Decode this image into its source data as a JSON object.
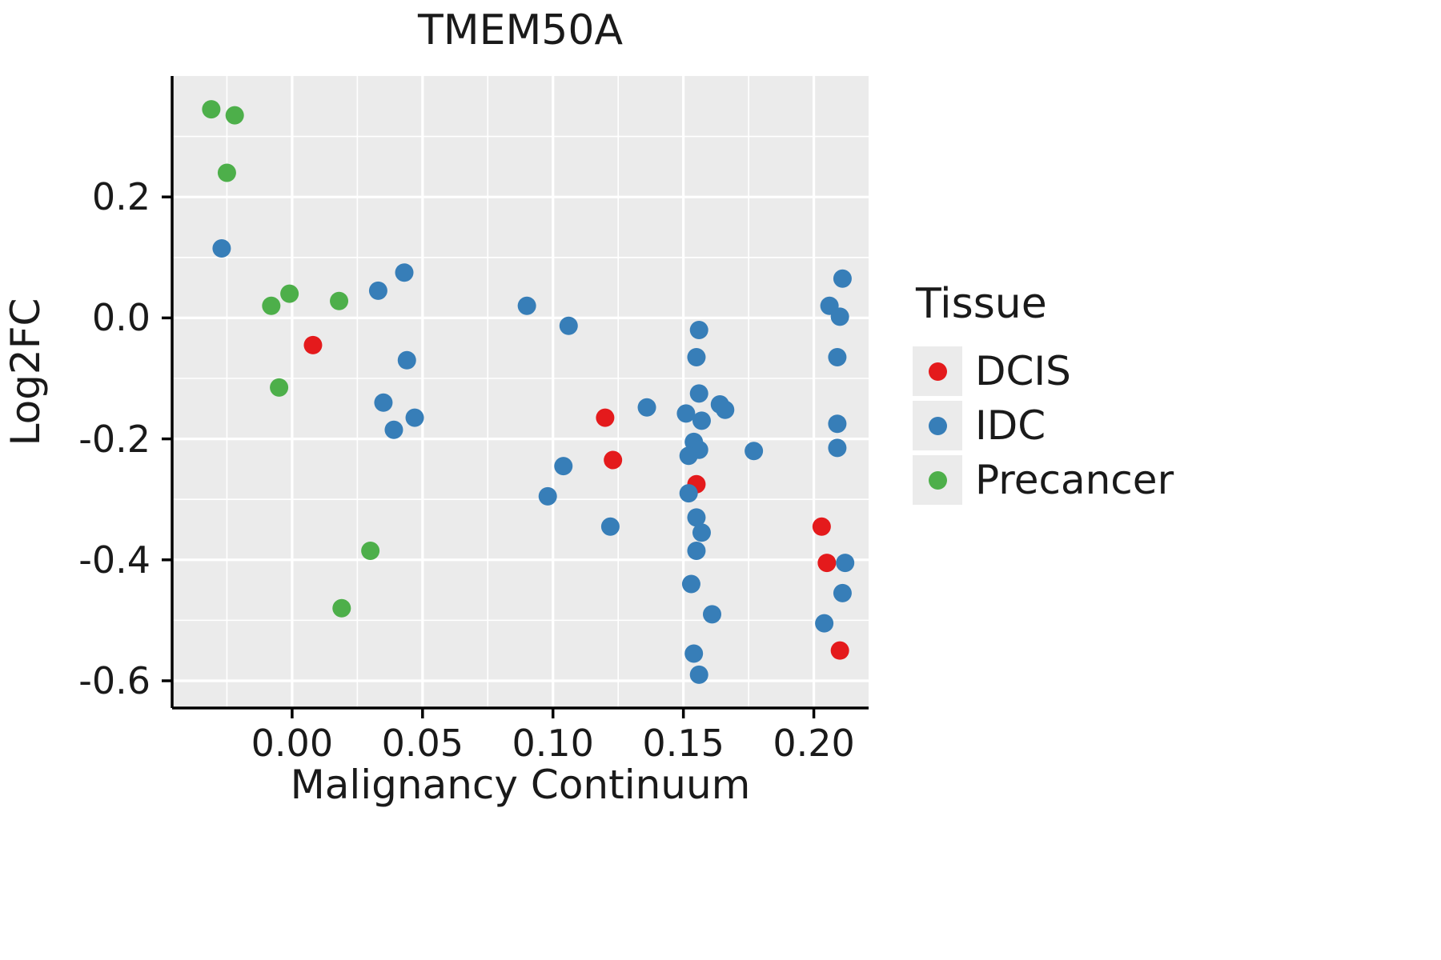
{
  "chart_data": {
    "type": "scatter",
    "title": "TMEM50A",
    "xlabel": "Malignancy Continuum",
    "ylabel": "Log2FC",
    "xlim": [
      -0.046,
      0.221
    ],
    "ylim": [
      -0.645,
      0.4
    ],
    "x_ticks": [
      0.0,
      0.05,
      0.1,
      0.15,
      0.2
    ],
    "x_tick_labels": [
      "0.00",
      "0.05",
      "0.10",
      "0.15",
      "0.20"
    ],
    "x_minor": [
      -0.025,
      0.025,
      0.075,
      0.125,
      0.175
    ],
    "y_ticks": [
      0.2,
      0.0,
      -0.2,
      -0.4,
      -0.6
    ],
    "y_tick_labels": [
      "0.2",
      "0.0",
      "-0.2",
      "-0.4",
      "-0.6"
    ],
    "y_minor": [
      0.3,
      0.1,
      -0.1,
      -0.3,
      -0.5
    ],
    "grid": true,
    "panel_background": "#ebebeb",
    "grid_color": "#ffffff",
    "legend": {
      "title": "Tissue",
      "position": "right"
    },
    "series": [
      {
        "name": "DCIS",
        "color": "#e41a1c",
        "points": [
          [
            0.008,
            -0.045
          ],
          [
            0.12,
            -0.165
          ],
          [
            0.123,
            -0.235
          ],
          [
            0.155,
            -0.275
          ],
          [
            0.203,
            -0.345
          ],
          [
            0.205,
            -0.405
          ],
          [
            0.21,
            -0.55
          ]
        ]
      },
      {
        "name": "IDC",
        "color": "#377eb8",
        "points": [
          [
            -0.027,
            0.115
          ],
          [
            0.033,
            0.045
          ],
          [
            0.043,
            0.075
          ],
          [
            0.044,
            -0.07
          ],
          [
            0.035,
            -0.14
          ],
          [
            0.047,
            -0.165
          ],
          [
            0.039,
            -0.185
          ],
          [
            0.09,
            0.02
          ],
          [
            0.106,
            -0.013
          ],
          [
            0.104,
            -0.245
          ],
          [
            0.098,
            -0.295
          ],
          [
            0.122,
            -0.345
          ],
          [
            0.136,
            -0.148
          ],
          [
            0.156,
            -0.02
          ],
          [
            0.155,
            -0.065
          ],
          [
            0.156,
            -0.125
          ],
          [
            0.151,
            -0.158
          ],
          [
            0.157,
            -0.17
          ],
          [
            0.164,
            -0.143
          ],
          [
            0.166,
            -0.152
          ],
          [
            0.154,
            -0.205
          ],
          [
            0.156,
            -0.218
          ],
          [
            0.152,
            -0.228
          ],
          [
            0.152,
            -0.29
          ],
          [
            0.177,
            -0.22
          ],
          [
            0.155,
            -0.33
          ],
          [
            0.157,
            -0.355
          ],
          [
            0.155,
            -0.385
          ],
          [
            0.153,
            -0.44
          ],
          [
            0.161,
            -0.49
          ],
          [
            0.154,
            -0.555
          ],
          [
            0.156,
            -0.59
          ],
          [
            0.211,
            0.065
          ],
          [
            0.206,
            0.02
          ],
          [
            0.21,
            0.002
          ],
          [
            0.209,
            -0.065
          ],
          [
            0.209,
            -0.175
          ],
          [
            0.209,
            -0.215
          ],
          [
            0.212,
            -0.405
          ],
          [
            0.211,
            -0.455
          ],
          [
            0.204,
            -0.505
          ]
        ]
      },
      {
        "name": "Precancer",
        "color": "#4daf4a",
        "points": [
          [
            -0.031,
            0.345
          ],
          [
            -0.022,
            0.335
          ],
          [
            -0.025,
            0.24
          ],
          [
            -0.008,
            0.02
          ],
          [
            -0.001,
            0.04
          ],
          [
            0.018,
            0.028
          ],
          [
            -0.005,
            -0.115
          ],
          [
            0.03,
            -0.385
          ],
          [
            0.019,
            -0.48
          ]
        ]
      }
    ]
  }
}
